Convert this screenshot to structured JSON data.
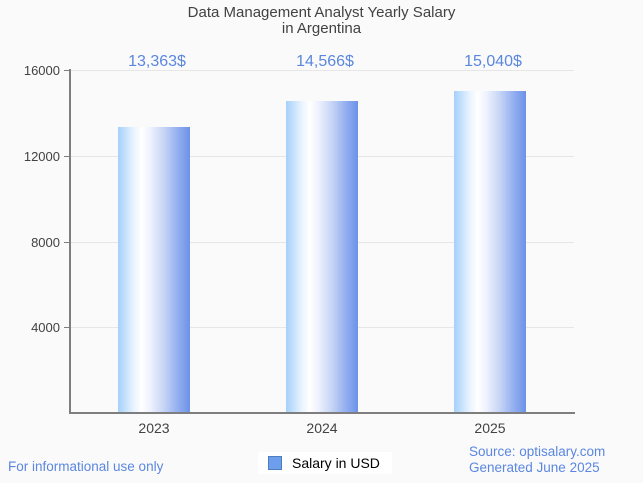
{
  "title": {
    "line1": "Data Management Analyst Yearly Salary",
    "line2": "in Argentina"
  },
  "chart_data": {
    "type": "bar",
    "categories": [
      "2023",
      "2024",
      "2025"
    ],
    "values": [
      13363,
      14566,
      15040
    ],
    "value_labels": [
      "13,363$",
      "14,566$",
      "15,040$"
    ],
    "title": "Data Management Analyst Yearly Salary in Argentina",
    "xlabel": "",
    "ylabel": "",
    "ylim": [
      0,
      16000
    ],
    "yticks": [
      4000,
      8000,
      12000,
      16000
    ],
    "grid": "horizontal",
    "legend_position": "bottom",
    "series_name": "Salary in USD"
  },
  "legend": {
    "label": "Salary in USD"
  },
  "footer": {
    "disclaimer": "For informational use only",
    "source": "Source: optisalary.com",
    "generated": "Generated June 2025"
  },
  "colors": {
    "accent_blue": "#5b87e0",
    "title_gray": "#424242",
    "axis_gray": "#7e7e7e",
    "grid_gray": "#e6e6e6",
    "bar_gradient_left": "#a5d0fc",
    "bar_gradient_mid": "#ffffff",
    "bar_gradient_right": "#6b93e8",
    "legend_fill": "#6d9eeb",
    "legend_border": "#4a7ebf",
    "background": "#fafafa"
  }
}
